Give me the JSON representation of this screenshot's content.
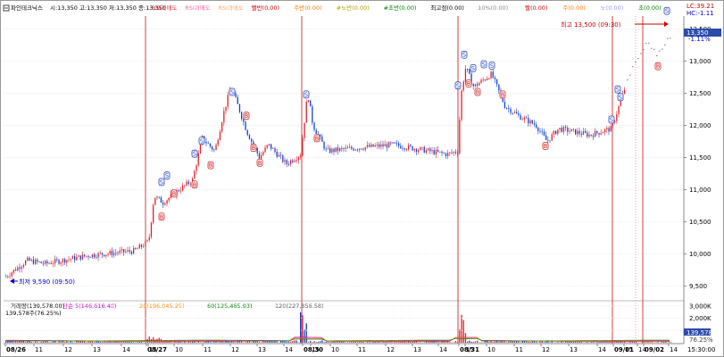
{
  "header": {
    "title": "파인테크닉스",
    "ohlc": "시:13,350 고:13,350 저:13,350 종:13,350",
    "indicators": [
      {
        "label": "RSI과매도",
        "color": "#e0303a"
      },
      {
        "label": "RSI과매도",
        "color": "#ff66aa"
      },
      {
        "label": "RSI과매도",
        "color": "#ffaa66"
      },
      {
        "label": "빨반(0.00)",
        "color": "#d00000"
      },
      {
        "label": "주반(0.00)",
        "color": "#ff7a00"
      },
      {
        "label": "#노반(0.00)",
        "color": "#b0a000"
      },
      {
        "label": "#초반(0.00)",
        "color": "#008000"
      },
      {
        "label": "최고점(0.00)",
        "color": "#000000"
      },
      {
        "label": "10%(0.00)",
        "color": "#888888"
      },
      {
        "label": "빨(0.00)",
        "color": "#d00000"
      },
      {
        "label": "주(0.00)",
        "color": "#ff7a00"
      },
      {
        "label": "노(0.00)",
        "color": "#9999ff"
      },
      {
        "label": "초(0.00)",
        "color": "#008000"
      }
    ],
    "right_top": "LC:39.21",
    "right_second": "HC:-1.11"
  },
  "chart_data": [
    {
      "type": "candlestick",
      "ylim": [
        9300,
        13700
      ],
      "y_ticks": [
        "13,500",
        "13,000",
        "12,500",
        "12,000",
        "11,500",
        "11,000",
        "10,500",
        "10,000",
        "9,500"
      ],
      "last_price_label": "13,350",
      "last_change_label": "-1.11%",
      "annotations": {
        "high": "최고 13,500 (09:30)",
        "low": "최저 9,590 (09:50)"
      },
      "sessions": [
        {
          "date": "08/26",
          "hours": [
            "08/26",
            "11",
            "12",
            "13",
            "14",
            "15"
          ]
        },
        {
          "date": "08/27",
          "hours": [
            "08/27",
            "10",
            "11",
            "12",
            "13",
            "14",
            "15"
          ]
        },
        {
          "date": "08/30",
          "hours": [
            "08/30",
            "10",
            "11",
            "12",
            "13",
            "14",
            "15"
          ]
        },
        {
          "date": "08/31",
          "hours": [
            "08/31",
            "10",
            "11",
            "12",
            "13",
            "14",
            "15"
          ]
        },
        {
          "date": "09/01",
          "hours": [
            "09/01",
            "14"
          ]
        },
        {
          "date": "09/02",
          "hours": [
            "09/02",
            "14"
          ]
        }
      ],
      "x_axis_right": "15:30:00",
      "signal_markers": [
        {
          "type": "S",
          "x": 181,
          "y": 11120
        },
        {
          "type": "B",
          "x": 181,
          "y": 10580
        },
        {
          "type": "S",
          "x": 187,
          "y": 11220
        },
        {
          "type": "B",
          "x": 195,
          "y": 10940
        },
        {
          "type": "S",
          "x": 218,
          "y": 11560
        },
        {
          "type": "B",
          "x": 218,
          "y": 11080
        },
        {
          "type": "S",
          "x": 226,
          "y": 11760
        },
        {
          "type": "B",
          "x": 236,
          "y": 11380
        },
        {
          "type": "S",
          "x": 260,
          "y": 12520
        },
        {
          "type": "B",
          "x": 276,
          "y": 12150
        },
        {
          "type": "B",
          "x": 284,
          "y": 11650
        },
        {
          "type": "B",
          "x": 291,
          "y": 11420
        },
        {
          "type": "S",
          "x": 343,
          "y": 12480
        },
        {
          "type": "B",
          "x": 355,
          "y": 11800
        },
        {
          "type": "S",
          "x": 513,
          "y": 12620
        },
        {
          "type": "S",
          "x": 520,
          "y": 13100
        },
        {
          "type": "B",
          "x": 525,
          "y": 12650
        },
        {
          "type": "S",
          "x": 530,
          "y": 12890
        },
        {
          "type": "S",
          "x": 542,
          "y": 12950
        },
        {
          "type": "S",
          "x": 551,
          "y": 12930
        },
        {
          "type": "B",
          "x": 535,
          "y": 12520
        },
        {
          "type": "B",
          "x": 563,
          "y": 12480
        },
        {
          "type": "B",
          "x": 611,
          "y": 11680
        },
        {
          "type": "S",
          "x": 685,
          "y": 12090
        },
        {
          "type": "S",
          "x": 692,
          "y": 12560
        },
        {
          "type": "S",
          "x": 695,
          "y": 12440
        },
        {
          "type": "B",
          "x": 737,
          "y": 12920
        },
        {
          "type": "S",
          "x": 747,
          "y": 13780
        }
      ]
    },
    {
      "type": "bar",
      "title": "거래량(139,578.00)",
      "legend": [
        {
          "label": "단순 5(146,616.40)",
          "color": "#cc00cc"
        },
        {
          "label": "20(196,045.25)",
          "color": "#ff8800"
        },
        {
          "label": "60(125,465.93)",
          "color": "#008000"
        },
        {
          "label": "120(227,856.58)",
          "color": "#555555"
        }
      ],
      "sub_label": "139,578주(76.25%)",
      "y_ticks": [
        "3,000K",
        "2,000K",
        "1,000K"
      ],
      "current_label": "139,578",
      "current_pct": "76.25%"
    }
  ]
}
